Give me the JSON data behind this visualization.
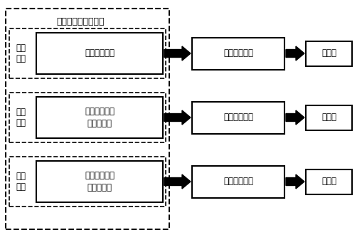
{
  "title": "工艺设计客户端单元",
  "background_color": "#ffffff",
  "rows": [
    {
      "left_label": "装配\n数模",
      "inner_box_label": "资源封装模块",
      "process_label": "程序处理模块",
      "server_label": "服务器"
    },
    {
      "left_label": "装配\n场景",
      "inner_box_label": "场景数据形式\n化处理模块",
      "process_label": "程序处理模块",
      "server_label": "服务器"
    },
    {
      "left_label": "装配\n工艺",
      "inner_box_label": "工艺数据形式\n化处理模块",
      "process_label": "程序处理模块",
      "server_label": "服务器"
    }
  ]
}
